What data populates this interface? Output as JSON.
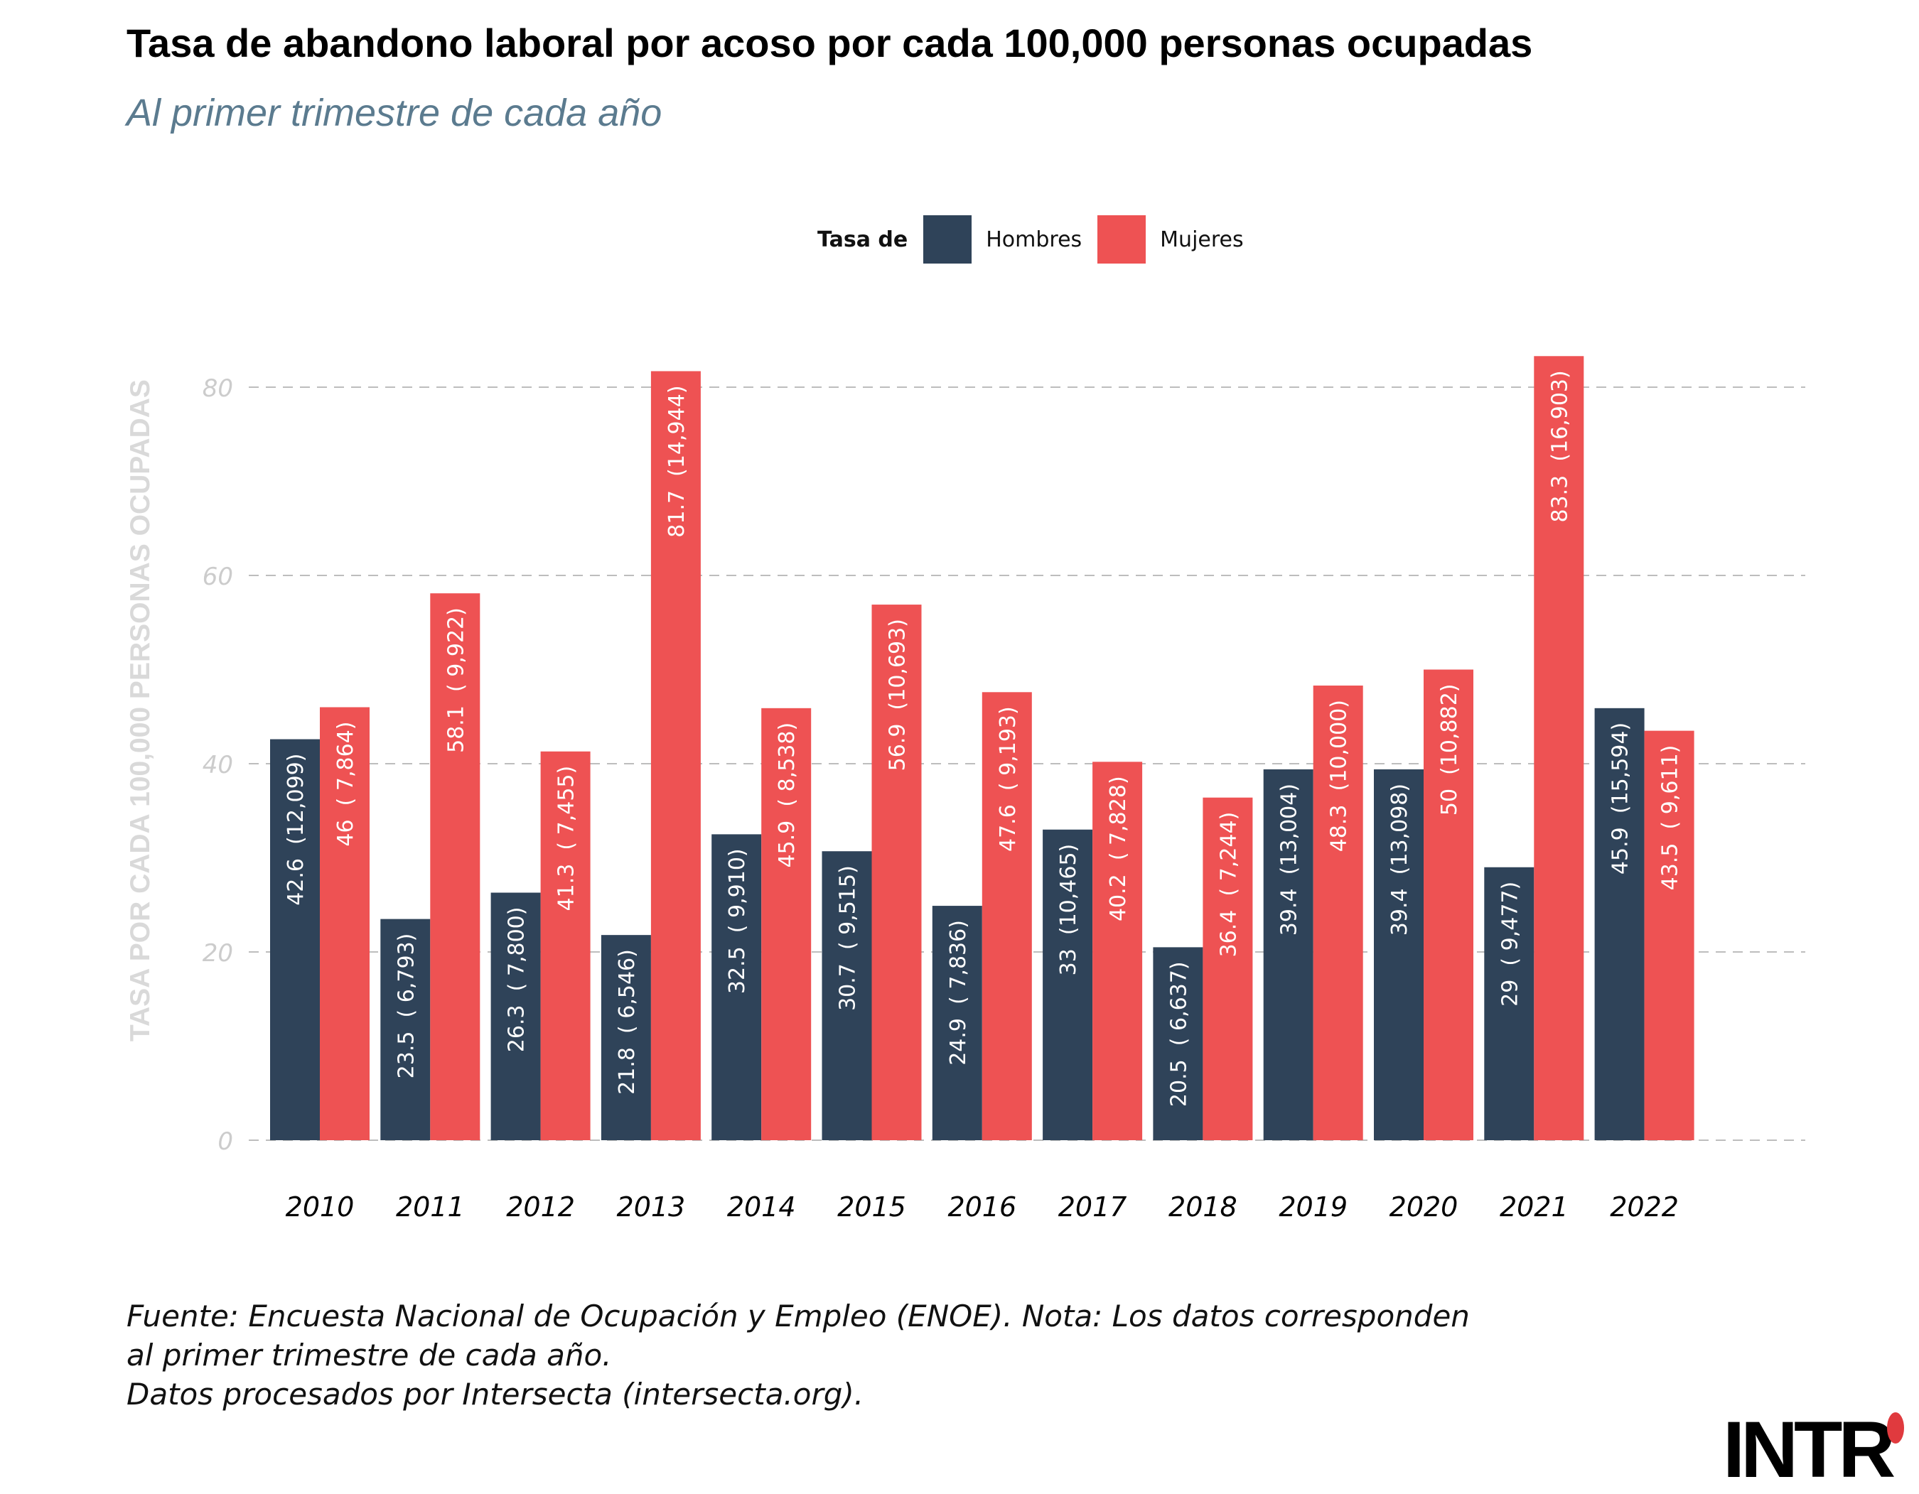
{
  "header": {
    "title": "Tasa de abandono laboral por acoso por cada 100,000 personas ocupadas",
    "subtitle": "Al primer trimestre de cada año"
  },
  "legend": {
    "title": "Tasa de",
    "items": [
      {
        "label": "Hombres",
        "color": "#2f4359"
      },
      {
        "label": "Mujeres",
        "color": "#ee5253"
      }
    ]
  },
  "chart_data": {
    "type": "bar",
    "ylabel": "TASA POR CADA 100,000 PERSONAS OCUPADAS",
    "ylim": [
      0,
      85
    ],
    "yticks": [
      0,
      20,
      40,
      60,
      80
    ],
    "grid": "horizontal dashed",
    "legend_position": "top",
    "categories": [
      "2010",
      "2011",
      "2012",
      "2013",
      "2014",
      "2015",
      "2016",
      "2017",
      "2018",
      "2019",
      "2020",
      "2021",
      "2022"
    ],
    "series": [
      {
        "name": "Hombres",
        "color": "#2f4359",
        "values": [
          42.6,
          23.5,
          26.3,
          21.8,
          32.5,
          30.7,
          24.9,
          33,
          20.5,
          39.4,
          39.4,
          29,
          45.9
        ],
        "labels": [
          "42.6  (12,099)",
          "23.5  ( 6,793)",
          "26.3  ( 7,800)",
          "21.8  ( 6,546)",
          "32.5  ( 9,910)",
          "30.7  ( 9,515)",
          "24.9  ( 7,836)",
          "33  (10,465)",
          "20.5  ( 6,637)",
          "39.4  (13,004)",
          "39.4  (13,098)",
          "29  ( 9,477)",
          "45.9  (15,594)"
        ]
      },
      {
        "name": "Mujeres",
        "color": "#ee5253",
        "values": [
          46,
          58.1,
          41.3,
          81.7,
          45.9,
          56.9,
          47.6,
          40.2,
          36.4,
          48.3,
          50,
          83.3,
          43.5
        ],
        "labels": [
          "46  ( 7,864)",
          "58.1  ( 9,922)",
          "41.3  ( 7,455)",
          "81.7  (14,944)",
          "45.9  ( 8,538)",
          "56.9  (10,693)",
          "47.6  ( 9,193)",
          "40.2  ( 7,828)",
          "36.4  ( 7,244)",
          "48.3  (10,000)",
          "50  (10,882)",
          "83.3  (16,903)",
          "43.5  ( 9,611)"
        ]
      }
    ]
  },
  "footer": {
    "line1": "Fuente: Encuesta Nacional de Ocupación y Empleo (ENOE). Nota: Los datos corresponden",
    "line2": "al primer trimestre de cada año.",
    "line3": "Datos procesados por Intersecta (intersecta.org)."
  },
  "logo": {
    "text": "INTR"
  }
}
